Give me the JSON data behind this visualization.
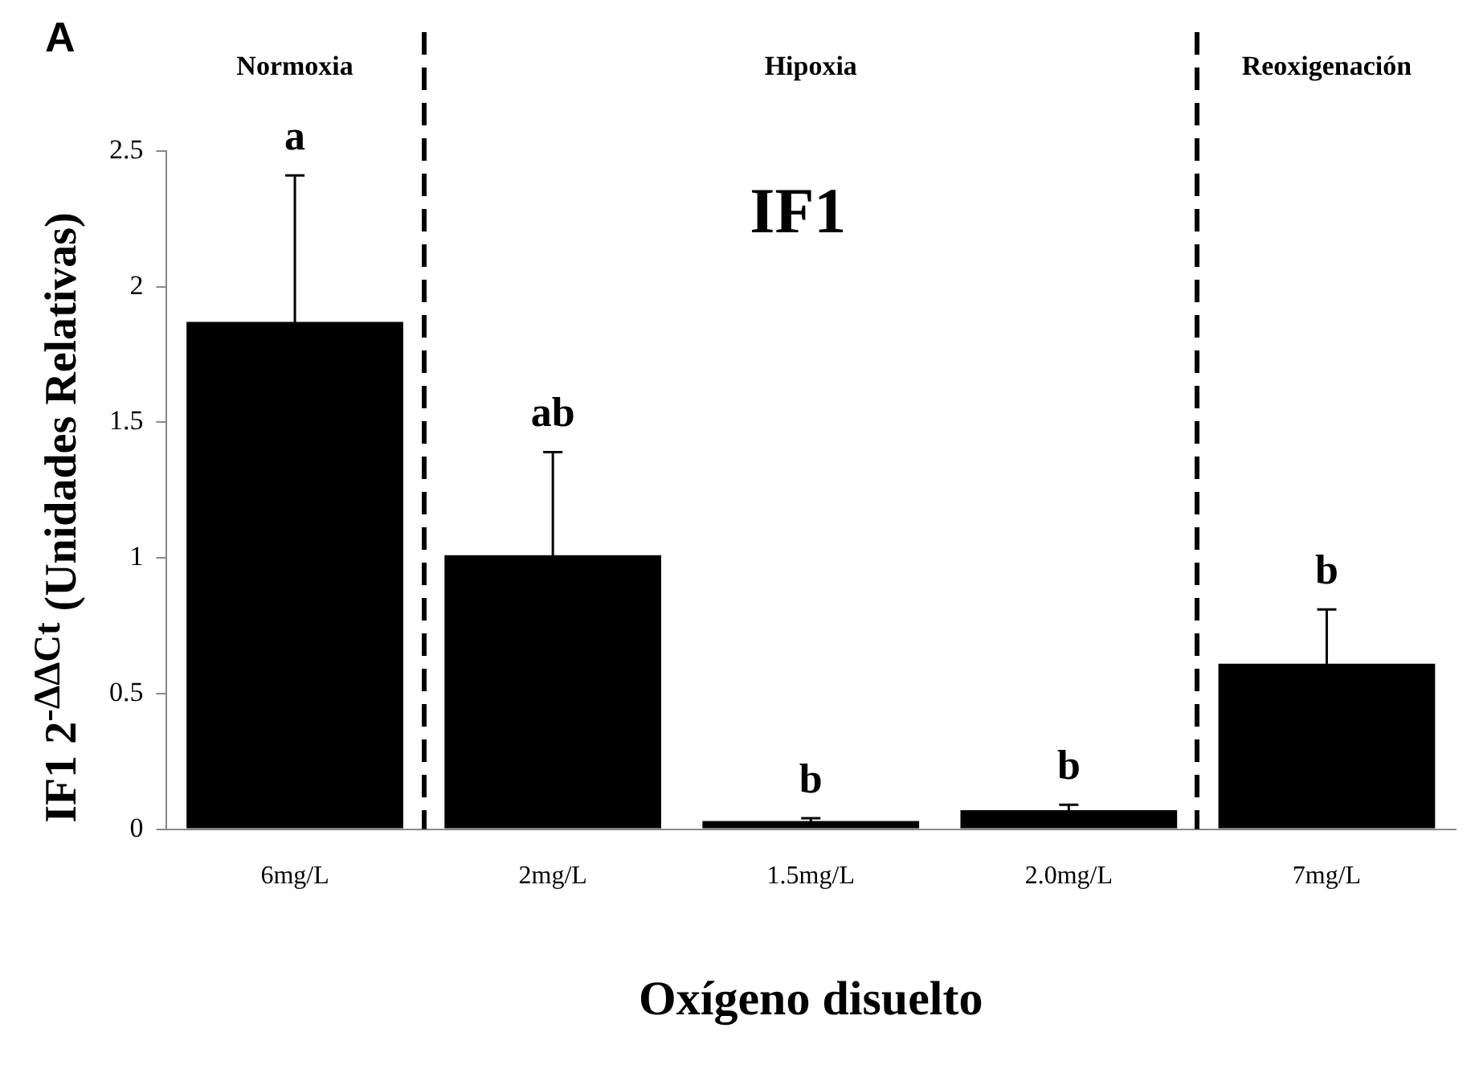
{
  "chart_data": {
    "type": "bar",
    "title": "IF1",
    "xlabel": "Oxígeno disuelto",
    "ylabel": "IF1 2$^{-ΔΔCt}$ (Unidades Relativas)",
    "categories": [
      "6mg/L",
      "2mg/L",
      "1.5mg/L",
      "2.0mg/L",
      "7mg/L"
    ],
    "values": [
      1.87,
      1.01,
      0.03,
      0.07,
      0.61
    ],
    "errors": [
      0.54,
      0.38,
      0.01,
      0.02,
      0.2
    ],
    "color": "#000000",
    "ylim": [
      0,
      2.5
    ],
    "yticks": [
      0,
      0.5,
      1,
      1.5,
      2,
      2.5
    ],
    "grid": false,
    "legend": false,
    "annotations": [
      "A",
      "Normoxia",
      "Hipoxia",
      "Reoxigenación",
      {
        "text": "a",
        "x": "6mg/L",
        "y": 2.41
      },
      {
        "text": "ab",
        "x": "2mg/L",
        "y": 1.39
      },
      {
        "text": "b",
        "x": "1.5mg/L",
        "y": 0.04
      },
      {
        "text": "b",
        "x": "2.0mg/L",
        "y": 0.09
      },
      {
        "text": "b",
        "x": "7mg/L",
        "y": 0.81
      }
    ]
  }
}
